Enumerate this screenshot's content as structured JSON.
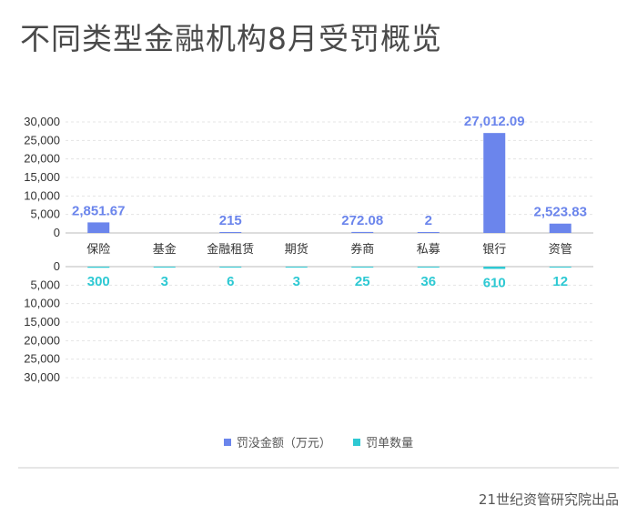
{
  "chart_data": {
    "type": "bar",
    "title": "不同类型金融机构8月受罚概览",
    "categories": [
      "保险",
      "基金",
      "金融租赁",
      "期货",
      "券商",
      "私募",
      "银行",
      "资管"
    ],
    "series": [
      {
        "name": "罚没金额（万元）",
        "color": "#6b85ec",
        "values": [
          2851.67,
          null,
          215,
          null,
          272.08,
          2,
          27012.09,
          2523.83
        ],
        "labels": [
          "2,851.67",
          "",
          "215",
          "",
          "272.08",
          "2",
          "27,012.09",
          "2,523.83"
        ]
      },
      {
        "name": "罚单数量",
        "color": "#2ec9d3",
        "values": [
          300,
          3,
          6,
          3,
          25,
          36,
          610,
          12
        ],
        "labels": [
          "300",
          "3",
          "6",
          "3",
          "25",
          "36",
          "610",
          "12"
        ]
      }
    ],
    "upper_axis": {
      "ylim": [
        0,
        30000
      ],
      "ticks": [
        "0",
        "5,000",
        "10,000",
        "15,000",
        "20,000",
        "25,000",
        "30,000"
      ]
    },
    "lower_axis": {
      "ylim": [
        0,
        30000
      ],
      "inverted": true,
      "ticks": [
        "0",
        "5,000",
        "10,000",
        "15,000",
        "20,000",
        "25,000",
        "30,000"
      ]
    },
    "grid": true,
    "legend_position": "bottom"
  },
  "source": "21世纪资管研究院出品"
}
